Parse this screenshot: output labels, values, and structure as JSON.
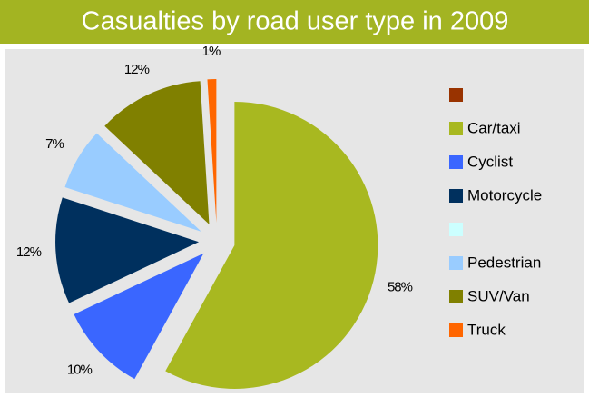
{
  "chart_data": {
    "type": "pie",
    "title": "Casualties by road user type in 2009",
    "categories": [
      null,
      "Car/taxi",
      "Cyclist",
      "Motorcycle",
      null,
      "Pedestrian",
      "SUV/Van",
      "Truck"
    ],
    "values": [
      0,
      58,
      10,
      12,
      0,
      7,
      12,
      1
    ],
    "value_labels": [
      null,
      "58%",
      "10%",
      "12%",
      null,
      "7%",
      "12%",
      "1%"
    ],
    "colors": [
      "#993300",
      "#a8b820",
      "#3a66ff",
      "#00305e",
      "#ccffff",
      "#99ccff",
      "#808000",
      "#ff6600"
    ],
    "legend": "right"
  }
}
